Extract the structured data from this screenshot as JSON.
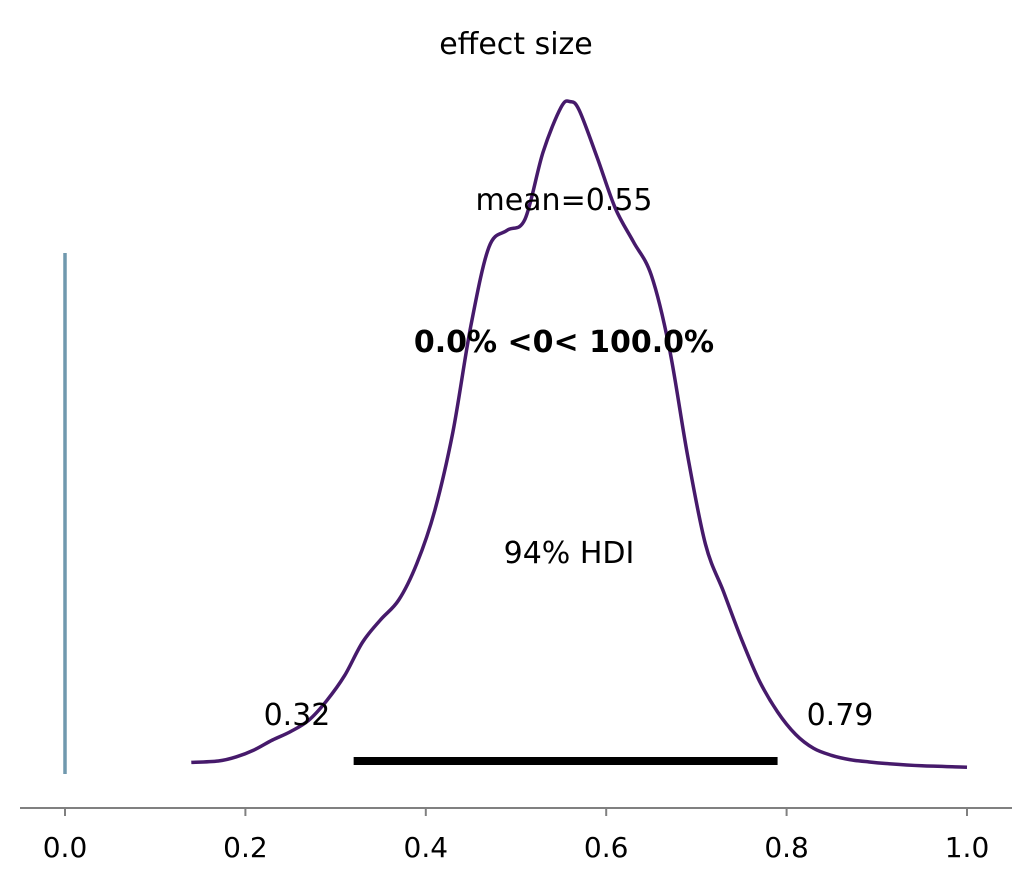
{
  "chart_data": {
    "type": "density",
    "title": "effect size",
    "xlabel": "",
    "ylabel": "",
    "xlim": [
      -0.05,
      1.05
    ],
    "xticks": [
      0.0,
      0.2,
      0.4,
      0.6,
      0.8,
      1.0
    ],
    "xtick_labels": [
      "0.0",
      "0.2",
      "0.4",
      "0.6",
      "0.8",
      "1.0"
    ],
    "y_axis_shown": false,
    "grid": false,
    "colors": {
      "density": "#461a6b",
      "reference_line": "#7099ae",
      "reference_text": "#2e6a8e",
      "hdi_bar": "#000000",
      "axis": "#808080"
    },
    "series": [
      {
        "x": [
          0.14,
          0.17,
          0.19,
          0.21,
          0.23,
          0.25,
          0.27,
          0.29,
          0.31,
          0.33,
          0.35,
          0.37,
          0.39,
          0.41,
          0.43,
          0.45,
          0.47,
          0.49,
          0.51,
          0.53,
          0.55,
          0.56,
          0.57,
          0.59,
          0.61,
          0.63,
          0.65,
          0.67,
          0.69,
          0.71,
          0.73,
          0.75,
          0.77,
          0.79,
          0.81,
          0.83,
          0.85,
          0.87,
          0.89,
          0.91,
          0.95,
          1.0
        ],
        "density": [
          0.02,
          0.025,
          0.04,
          0.065,
          0.1,
          0.13,
          0.17,
          0.24,
          0.33,
          0.45,
          0.53,
          0.6,
          0.73,
          0.92,
          1.2,
          1.58,
          1.86,
          1.92,
          1.96,
          2.2,
          2.36,
          2.38,
          2.35,
          2.18,
          2.0,
          1.88,
          1.76,
          1.5,
          1.12,
          0.8,
          0.63,
          0.46,
          0.31,
          0.2,
          0.12,
          0.07,
          0.045,
          0.03,
          0.022,
          0.016,
          0.008,
          0.003
        ]
      }
    ],
    "annotations": {
      "mean_label": "mean=0.55",
      "hdi_label": "94% HDI",
      "hdi_low": 0.32,
      "hdi_high": 0.79,
      "hdi_low_label": "0.32",
      "hdi_high_label": "0.79",
      "reference_value": 0.0,
      "reference_label": "0.0% <0< 100.0%"
    }
  }
}
